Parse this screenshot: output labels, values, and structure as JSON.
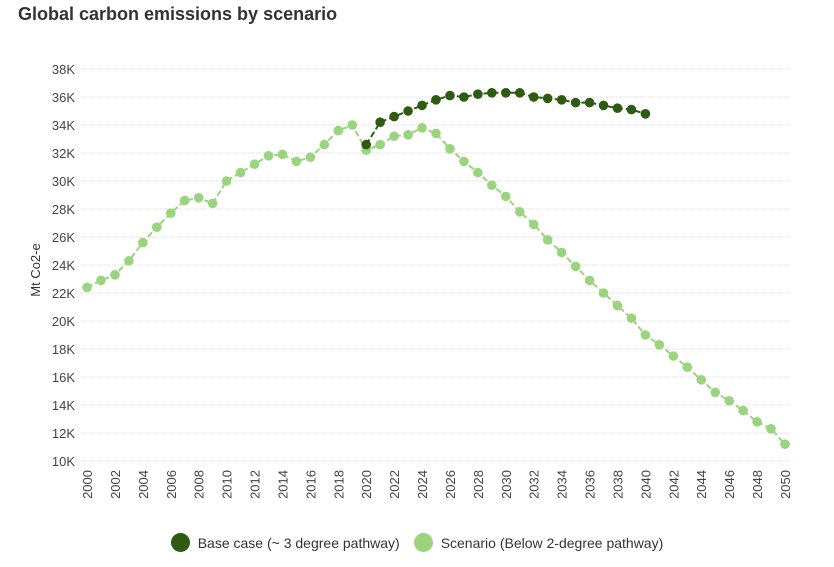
{
  "colors": {
    "base": "#2f5a12",
    "scenario": "#9bd47e",
    "grid": "#dddddd"
  },
  "chart_data": {
    "type": "line",
    "title": "Global carbon emissions by scenario",
    "xlabel": "",
    "ylabel": "Mt Co2-e",
    "xlim": [
      2000,
      2050
    ],
    "ylim": [
      10000,
      38000
    ],
    "yticks": [
      10000,
      12000,
      14000,
      16000,
      18000,
      20000,
      22000,
      24000,
      26000,
      28000,
      30000,
      32000,
      34000,
      36000,
      38000
    ],
    "ytick_labels": [
      "10K",
      "12K",
      "14K",
      "16K",
      "18K",
      "20K",
      "22K",
      "24K",
      "26K",
      "28K",
      "30K",
      "32K",
      "34K",
      "36K",
      "38K"
    ],
    "xticks": [
      2000,
      2002,
      2004,
      2006,
      2008,
      2010,
      2012,
      2014,
      2016,
      2018,
      2020,
      2022,
      2024,
      2026,
      2028,
      2030,
      2032,
      2034,
      2036,
      2038,
      2040,
      2042,
      2044,
      2046,
      2048,
      2050
    ],
    "xtick_labels": [
      "2000",
      "2002",
      "2004",
      "2006",
      "2008",
      "2010",
      "2012",
      "2014",
      "2016",
      "2018",
      "2020",
      "2022",
      "2024",
      "2026",
      "2028",
      "2030",
      "2032",
      "2034",
      "2036",
      "2038",
      "2040",
      "2042",
      "2044",
      "2046",
      "2048",
      "2050"
    ],
    "legend_position": "bottom",
    "series": [
      {
        "name": "Base case (~ 3 degree pathway)",
        "color_key": "base",
        "x": [
          2020,
          2021,
          2022,
          2023,
          2024,
          2025,
          2026,
          2027,
          2028,
          2029,
          2030,
          2031,
          2032,
          2033,
          2034,
          2035,
          2036,
          2037,
          2038,
          2039,
          2040
        ],
        "values": [
          32600,
          34200,
          34600,
          35000,
          35400,
          35800,
          36100,
          36000,
          36200,
          36300,
          36300,
          36300,
          36000,
          35900,
          35800,
          35600,
          35600,
          35400,
          35200,
          35100,
          34800
        ]
      },
      {
        "name": "Scenario (Below 2-degree pathway)",
        "color_key": "scenario",
        "x": [
          2000,
          2001,
          2002,
          2003,
          2004,
          2005,
          2006,
          2007,
          2008,
          2009,
          2010,
          2011,
          2012,
          2013,
          2014,
          2015,
          2016,
          2017,
          2018,
          2019,
          2020,
          2021,
          2022,
          2023,
          2024,
          2025,
          2026,
          2027,
          2028,
          2029,
          2030,
          2031,
          2032,
          2033,
          2034,
          2035,
          2036,
          2037,
          2038,
          2039,
          2040,
          2041,
          2042,
          2043,
          2044,
          2045,
          2046,
          2047,
          2048,
          2049,
          2050
        ],
        "values": [
          22400,
          22900,
          23300,
          24300,
          25600,
          26700,
          27700,
          28600,
          28800,
          28400,
          30000,
          30600,
          31200,
          31800,
          31900,
          31400,
          31700,
          32600,
          33600,
          34000,
          32200,
          32600,
          33200,
          33300,
          33800,
          33400,
          32300,
          31400,
          30600,
          29700,
          28900,
          27800,
          26900,
          25800,
          24900,
          23900,
          22900,
          22000,
          21100,
          20200,
          19000,
          18300,
          17500,
          16700,
          15800,
          14900,
          14300,
          13600,
          12800,
          12300,
          11200
        ]
      }
    ]
  }
}
